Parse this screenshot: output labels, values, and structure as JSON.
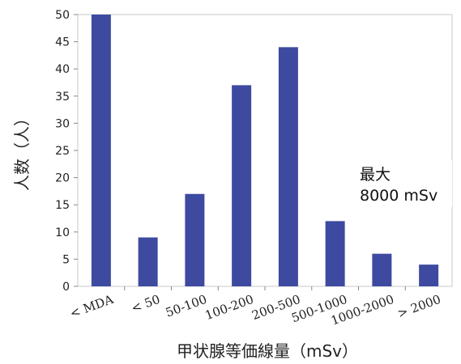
{
  "chart_data": {
    "type": "bar",
    "categories": [
      "< MDA",
      "< 50",
      "50-100",
      "100-200",
      "200-500",
      "500-1000",
      "1000-2000",
      "> 2000"
    ],
    "values": [
      50,
      9,
      17,
      37,
      44,
      12,
      6,
      4
    ],
    "ylabel": "人数（人）",
    "xlabel": "甲状腺等価線量（mSv）",
    "ylim": [
      0,
      50
    ],
    "yticks": [
      0,
      5,
      10,
      15,
      20,
      25,
      30,
      35,
      40,
      45,
      50
    ],
    "grid": false,
    "bar_color": "#3d4aa0",
    "annotation": [
      "最大",
      "8000 mSv"
    ]
  }
}
